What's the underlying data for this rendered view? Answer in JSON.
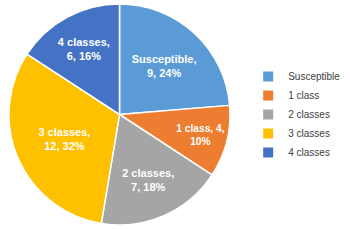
{
  "chart_data": {
    "type": "pie",
    "categories": [
      "Susceptible",
      "1 class",
      "2 classes",
      "3 classes",
      "4 classes"
    ],
    "values": [
      9,
      4,
      7,
      12,
      6
    ],
    "value_labels": [
      "Susceptible,\n9, 24%",
      "1 class, 4,\n10%",
      "2 classes,\n7, 18%",
      "3 classes,\n12, 32%",
      "4 classes,\n6, 16%"
    ],
    "colors": [
      "#5b9bd5",
      "#ed7d31",
      "#a5a5a5",
      "#ffc000",
      "#4472c4"
    ],
    "data_labels": true,
    "legend": "right"
  }
}
